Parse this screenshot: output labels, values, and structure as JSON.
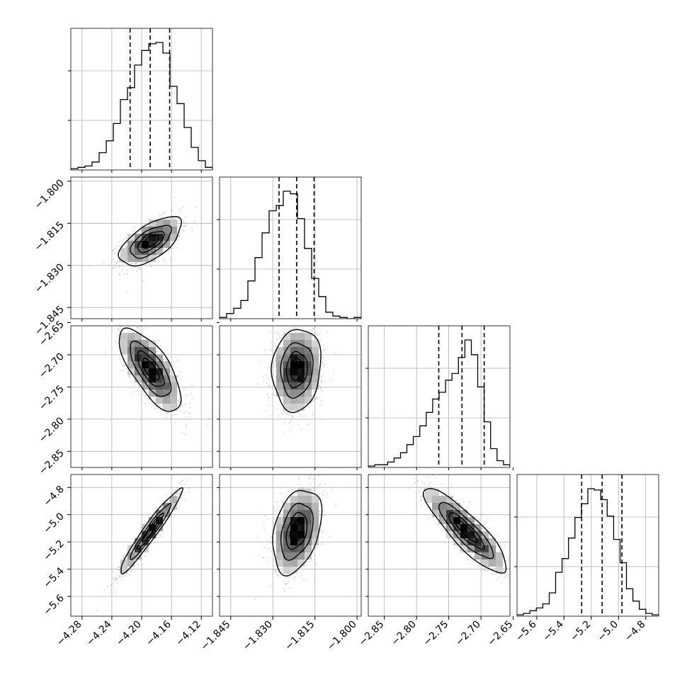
{
  "chart_data": {
    "type": "corner",
    "parameters": [
      {
        "range": [
          -4.295,
          -4.105
        ],
        "ticks": [
          -4.28,
          -4.24,
          -4.2,
          -4.16,
          -4.12
        ],
        "tick_labels": [
          "−4.28",
          "−4.24",
          "−4.20",
          "−4.16",
          "−4.12"
        ],
        "mean": -4.188,
        "sigma": 0.02,
        "quantiles": [
          -4.2155,
          -4.1885,
          -4.1625
        ],
        "histogram": [
          1,
          2,
          3,
          6,
          13,
          22,
          35,
          53,
          62,
          79,
          90,
          95,
          96,
          88,
          63,
          50,
          32,
          17,
          7,
          2
        ]
      },
      {
        "range": [
          -1.849,
          -1.7985
        ],
        "ticks": [
          -1.845,
          -1.83,
          -1.815,
          -1.8
        ],
        "tick_labels": [
          "−1.845",
          "−1.830",
          "−1.815",
          "−1.800"
        ],
        "mean": -1.8215,
        "sigma": 0.0042,
        "quantiles": [
          -1.8278,
          -1.8215,
          -1.8153
        ],
        "histogram": [
          1,
          4,
          8,
          14,
          29,
          47,
          66,
          83,
          87,
          98,
          96,
          77,
          54,
          31,
          17,
          5,
          2,
          1,
          0,
          1
        ]
      },
      {
        "range": [
          -2.875,
          -2.655
        ],
        "ticks": [
          -2.85,
          -2.8,
          -2.75,
          -2.7,
          -2.65
        ],
        "tick_labels": [
          "−2.85",
          "−2.80",
          "−2.75",
          "−2.70",
          "−2.65"
        ],
        "mean": -2.723,
        "sigma": 0.031,
        "quantiles": [
          -2.7655,
          -2.7295,
          -2.695
        ],
        "histogram": [
          1,
          2,
          2,
          4,
          7,
          11,
          17,
          23,
          31,
          41,
          51,
          56,
          65,
          70,
          82,
          95,
          84,
          60,
          34,
          14,
          5,
          2
        ]
      },
      {
        "range": [
          -5.745,
          -4.705
        ],
        "ticks": [
          -5.6,
          -5.4,
          -5.2,
          -5.0,
          -4.8
        ],
        "tick_labels": [
          "−5.6",
          "−5.4",
          "−5.2",
          "−5.0",
          "−4.8"
        ],
        "mean": -5.12,
        "sigma": 0.15,
        "quantiles": [
          -5.27,
          -5.12,
          -4.975
        ],
        "histogram": [
          1,
          2,
          4,
          6,
          9,
          17,
          32,
          42,
          57,
          72,
          82,
          93,
          92,
          85,
          73,
          56,
          39,
          20,
          11,
          5,
          2,
          1
        ]
      }
    ],
    "correlations": {
      "1-0": 0.62,
      "2-0": -0.71,
      "2-1": 0.1,
      "3-0": 0.96,
      "3-1": 0.35,
      "3-2": -0.87
    },
    "contour_levels_sigma": [
      0.5,
      1.0,
      1.5,
      2.0
    ],
    "colors": {
      "line": "#000000",
      "grid": "#b0b0b0",
      "points": "#9a9a9a",
      "density_dark": "#000000"
    },
    "grid": true
  }
}
